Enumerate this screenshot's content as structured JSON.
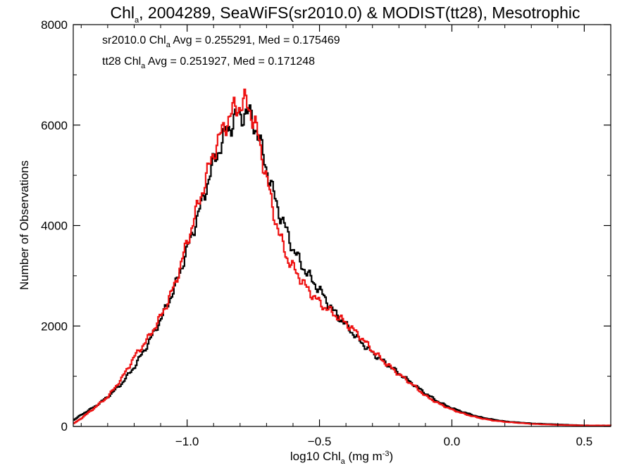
{
  "chart_data": {
    "type": "line",
    "title": {
      "main": "Chl",
      "sub": "a",
      "rest": ", 2004289, SeaWiFS(sr2010.0) & MODIST(tt28), Mesotrophic"
    },
    "xlabel": {
      "pre": "log10 Chl",
      "sub": "a",
      "post": " (mg m",
      "sup": "-3",
      "end": ")"
    },
    "ylabel": "Number of Observations",
    "xlim": [
      -1.43,
      0.6
    ],
    "ylim": [
      0,
      8000
    ],
    "x_ticks": [
      {
        "value": -1.0,
        "label": "−1.0"
      },
      {
        "value": -0.5,
        "label": "−0.5"
      },
      {
        "value": 0.0,
        "label": "0.0"
      },
      {
        "value": 0.5,
        "label": "0.5"
      }
    ],
    "y_ticks": [
      {
        "value": 0,
        "label": "0"
      },
      {
        "value": 2000,
        "label": "2000"
      },
      {
        "value": 4000,
        "label": "4000"
      },
      {
        "value": 6000,
        "label": "6000"
      },
      {
        "value": 8000,
        "label": "8000"
      }
    ],
    "annotations": [
      {
        "pre": "sr2010.0 Chl",
        "sub": "a",
        "post": " Avg = 0.255291, Med = 0.175469",
        "color": "#000000"
      },
      {
        "pre": "tt28 Chl",
        "sub": "a",
        "post": " Avg = 0.251927, Med = 0.171248",
        "color": "#ee1111"
      }
    ],
    "series": [
      {
        "label": "sr2010.0",
        "color": "#000000",
        "x": [
          -1.43,
          -1.4,
          -1.35,
          -1.3,
          -1.25,
          -1.2,
          -1.15,
          -1.1,
          -1.05,
          -1.0,
          -0.95,
          -0.9,
          -0.85,
          -0.82,
          -0.8,
          -0.78,
          -0.76,
          -0.74,
          -0.72,
          -0.7,
          -0.68,
          -0.65,
          -0.62,
          -0.6,
          -0.55,
          -0.5,
          -0.45,
          -0.4,
          -0.35,
          -0.3,
          -0.25,
          -0.2,
          -0.15,
          -0.1,
          -0.05,
          0.0,
          0.05,
          0.1,
          0.15,
          0.2,
          0.3,
          0.4,
          0.5,
          0.6
        ],
        "y": [
          130,
          240,
          400,
          600,
          850,
          1200,
          1650,
          2150,
          2750,
          3550,
          4400,
          5300,
          5900,
          6150,
          6200,
          6250,
          6150,
          5900,
          5500,
          5100,
          4700,
          4200,
          3800,
          3500,
          3050,
          2700,
          2300,
          2000,
          1700,
          1450,
          1250,
          1050,
          850,
          650,
          480,
          360,
          270,
          190,
          140,
          100,
          60,
          40,
          20,
          20
        ]
      },
      {
        "label": "tt28",
        "color": "#ee1111",
        "x": [
          -1.43,
          -1.4,
          -1.35,
          -1.3,
          -1.25,
          -1.2,
          -1.15,
          -1.1,
          -1.05,
          -1.0,
          -0.95,
          -0.9,
          -0.85,
          -0.82,
          -0.8,
          -0.78,
          -0.76,
          -0.74,
          -0.72,
          -0.7,
          -0.68,
          -0.65,
          -0.62,
          -0.6,
          -0.55,
          -0.5,
          -0.45,
          -0.4,
          -0.35,
          -0.3,
          -0.25,
          -0.2,
          -0.15,
          -0.1,
          -0.05,
          0.0,
          0.05,
          0.1,
          0.15,
          0.2,
          0.3,
          0.4,
          0.5,
          0.6
        ],
        "y": [
          60,
          170,
          380,
          600,
          950,
          1400,
          1750,
          2200,
          2800,
          3700,
          4600,
          5500,
          6100,
          6350,
          6400,
          6450,
          6250,
          5900,
          5400,
          4900,
          4350,
          3750,
          3300,
          3150,
          2750,
          2450,
          2250,
          2050,
          1800,
          1500,
          1250,
          1030,
          830,
          600,
          450,
          330,
          240,
          170,
          120,
          90,
          50,
          30,
          20,
          20
        ]
      }
    ]
  }
}
